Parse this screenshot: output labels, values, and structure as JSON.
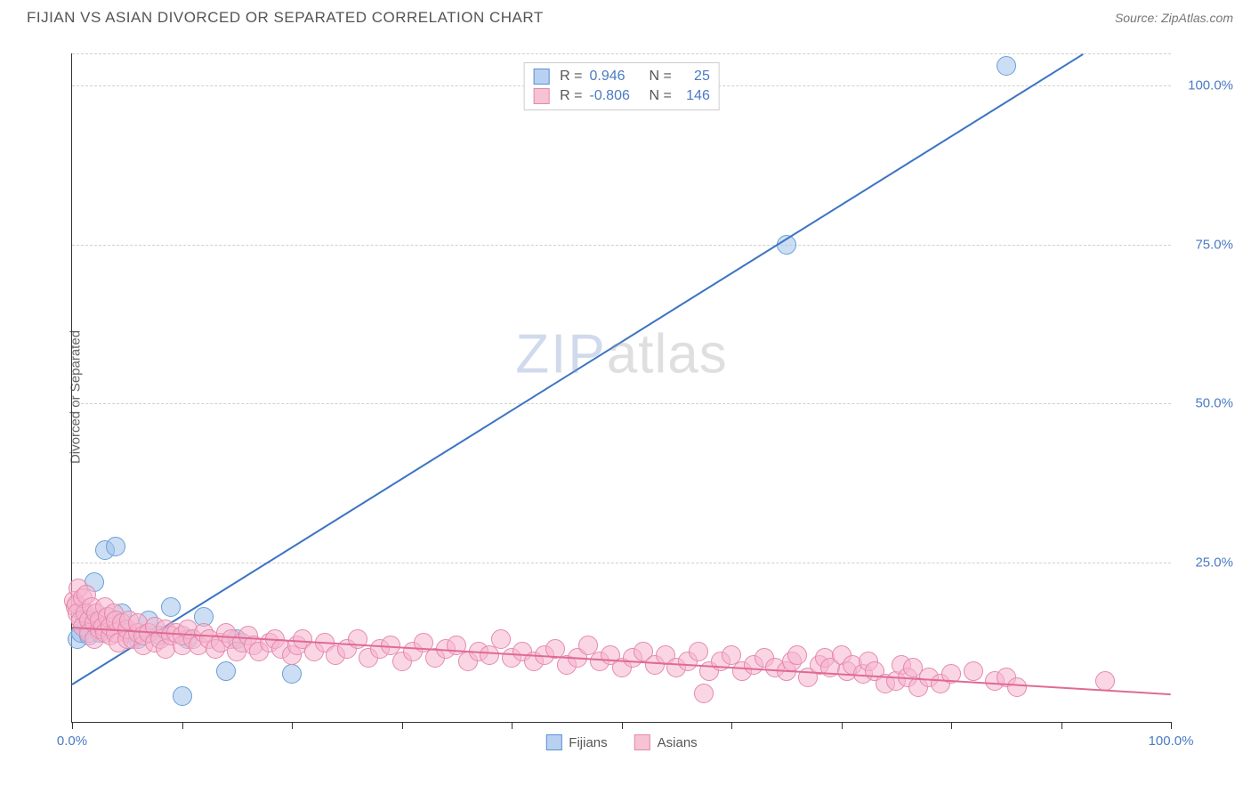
{
  "header": {
    "title": "FIJIAN VS ASIAN DIVORCED OR SEPARATED CORRELATION CHART",
    "source_label": "Source:",
    "source_value": "ZipAtlas.com"
  },
  "chart": {
    "type": "scatter",
    "y_label": "Divorced or Separated",
    "background_color": "#ffffff",
    "grid_color": "#d0d0d0",
    "axis_color": "#333333",
    "tick_label_color": "#4a7bc4",
    "xlim": [
      0,
      100
    ],
    "ylim": [
      0,
      105
    ],
    "x_ticks": [
      0,
      10,
      20,
      30,
      40,
      50,
      60,
      70,
      80,
      90,
      100
    ],
    "x_tick_labels": {
      "0": "0.0%",
      "100": "100.0%"
    },
    "y_gridlines": [
      25,
      50,
      75,
      100,
      105
    ],
    "y_tick_labels": {
      "25": "25.0%",
      "50": "50.0%",
      "75": "75.0%",
      "100": "100.0%"
    },
    "watermark": {
      "part1": "ZIP",
      "part2": "atlas"
    },
    "legend_bottom": [
      {
        "label": "Fijians",
        "fill": "#b9d1f0",
        "stroke": "#5a8fd6"
      },
      {
        "label": "Asians",
        "fill": "#f5c3d4",
        "stroke": "#e589ab"
      }
    ],
    "legend_stats": [
      {
        "fill": "#b9d1f0",
        "stroke": "#5a8fd6",
        "r_label": "R =",
        "r_value": "0.946",
        "n_label": "N =",
        "n_value": "25"
      },
      {
        "fill": "#f5c3d4",
        "stroke": "#e589ab",
        "r_label": "R =",
        "r_value": "-0.806",
        "n_label": "N =",
        "n_value": "146"
      }
    ],
    "series": [
      {
        "name": "Fijians",
        "marker_fill": "rgba(160,195,235,0.55)",
        "marker_stroke": "#6a9fd8",
        "marker_radius": 11,
        "line_color": "#3a74c4",
        "line_width": 2,
        "trend": {
          "x1": 0,
          "y1": 6,
          "x2": 92,
          "y2": 105
        },
        "points": [
          [
            0.5,
            13
          ],
          [
            0.8,
            14
          ],
          [
            1,
            15
          ],
          [
            1,
            17
          ],
          [
            1.5,
            16
          ],
          [
            1.5,
            13.5
          ],
          [
            2,
            15.5
          ],
          [
            2,
            22
          ],
          [
            2.5,
            14
          ],
          [
            3,
            27
          ],
          [
            4,
            27.5
          ],
          [
            4.5,
            17
          ],
          [
            5,
            14
          ],
          [
            6,
            13
          ],
          [
            7,
            16
          ],
          [
            8,
            13.5
          ],
          [
            9,
            18
          ],
          [
            10,
            4
          ],
          [
            10.5,
            13
          ],
          [
            12,
            16.5
          ],
          [
            14,
            8
          ],
          [
            15,
            13
          ],
          [
            20,
            7.5
          ],
          [
            65,
            75
          ],
          [
            85,
            103
          ]
        ]
      },
      {
        "name": "Asians",
        "marker_fill": "rgba(245,180,205,0.55)",
        "marker_stroke": "#e589ab",
        "marker_radius": 11,
        "line_color": "#e06a94",
        "line_width": 2,
        "trend": {
          "x1": 0,
          "y1": 15,
          "x2": 100,
          "y2": 4.5
        },
        "points": [
          [
            0.2,
            19
          ],
          [
            0.3,
            18
          ],
          [
            0.4,
            18.5
          ],
          [
            0.5,
            17
          ],
          [
            0.6,
            21
          ],
          [
            0.8,
            16
          ],
          [
            1,
            19.5
          ],
          [
            1,
            15
          ],
          [
            1.2,
            17
          ],
          [
            1.3,
            20
          ],
          [
            1.5,
            16
          ],
          [
            1.5,
            14
          ],
          [
            1.8,
            18
          ],
          [
            2,
            15.5
          ],
          [
            2,
            13
          ],
          [
            2.2,
            17
          ],
          [
            2.5,
            14.5
          ],
          [
            2.5,
            16
          ],
          [
            2.8,
            15
          ],
          [
            3,
            18
          ],
          [
            3,
            14
          ],
          [
            3.2,
            16.5
          ],
          [
            3.5,
            13.5
          ],
          [
            3.5,
            15
          ],
          [
            3.8,
            17
          ],
          [
            4,
            14
          ],
          [
            4,
            16
          ],
          [
            4.2,
            12.5
          ],
          [
            4.5,
            15.5
          ],
          [
            5,
            13
          ],
          [
            5,
            14.5
          ],
          [
            5.2,
            16
          ],
          [
            5.5,
            13
          ],
          [
            6,
            14
          ],
          [
            6,
            15.5
          ],
          [
            6.5,
            12
          ],
          [
            6.5,
            13.5
          ],
          [
            7,
            14
          ],
          [
            7.5,
            15
          ],
          [
            7.5,
            12.5
          ],
          [
            8,
            13
          ],
          [
            8.5,
            14.5
          ],
          [
            8.5,
            11.5
          ],
          [
            9,
            13.5
          ],
          [
            9.5,
            14
          ],
          [
            10,
            12
          ],
          [
            10,
            13.5
          ],
          [
            10.5,
            14.5
          ],
          [
            11,
            13
          ],
          [
            11.5,
            12
          ],
          [
            12,
            14
          ],
          [
            12.5,
            13
          ],
          [
            13,
            11.5
          ],
          [
            13.5,
            12.5
          ],
          [
            14,
            14
          ],
          [
            14.5,
            13
          ],
          [
            15,
            11
          ],
          [
            15.5,
            12.5
          ],
          [
            16,
            13.5
          ],
          [
            16.5,
            12
          ],
          [
            17,
            11
          ],
          [
            18,
            12.5
          ],
          [
            18.5,
            13
          ],
          [
            19,
            11.5
          ],
          [
            20,
            10.5
          ],
          [
            20.5,
            12
          ],
          [
            21,
            13
          ],
          [
            22,
            11
          ],
          [
            23,
            12.5
          ],
          [
            24,
            10.5
          ],
          [
            25,
            11.5
          ],
          [
            26,
            13
          ],
          [
            27,
            10
          ],
          [
            28,
            11.5
          ],
          [
            29,
            12
          ],
          [
            30,
            9.5
          ],
          [
            31,
            11
          ],
          [
            32,
            12.5
          ],
          [
            33,
            10
          ],
          [
            34,
            11.5
          ],
          [
            35,
            12
          ],
          [
            36,
            9.5
          ],
          [
            37,
            11
          ],
          [
            38,
            10.5
          ],
          [
            39,
            13
          ],
          [
            40,
            10
          ],
          [
            41,
            11
          ],
          [
            42,
            9.5
          ],
          [
            43,
            10.5
          ],
          [
            44,
            11.5
          ],
          [
            45,
            9
          ],
          [
            46,
            10
          ],
          [
            47,
            12
          ],
          [
            48,
            9.5
          ],
          [
            49,
            10.5
          ],
          [
            50,
            8.5
          ],
          [
            51,
            10
          ],
          [
            52,
            11
          ],
          [
            53,
            9
          ],
          [
            54,
            10.5
          ],
          [
            55,
            8.5
          ],
          [
            56,
            9.5
          ],
          [
            57,
            11
          ],
          [
            57.5,
            4.5
          ],
          [
            58,
            8
          ],
          [
            59,
            9.5
          ],
          [
            60,
            10.5
          ],
          [
            61,
            8
          ],
          [
            62,
            9
          ],
          [
            63,
            10
          ],
          [
            64,
            8.5
          ],
          [
            65,
            8
          ],
          [
            65.5,
            9.5
          ],
          [
            66,
            10.5
          ],
          [
            67,
            7
          ],
          [
            68,
            9
          ],
          [
            68.5,
            10
          ],
          [
            69,
            8.5
          ],
          [
            70,
            10.5
          ],
          [
            70.5,
            8
          ],
          [
            71,
            9
          ],
          [
            72,
            7.5
          ],
          [
            72.5,
            9.5
          ],
          [
            73,
            8
          ],
          [
            74,
            6
          ],
          [
            75,
            6.5
          ],
          [
            75.5,
            9
          ],
          [
            76,
            7
          ],
          [
            76.5,
            8.5
          ],
          [
            77,
            5.5
          ],
          [
            78,
            7
          ],
          [
            79,
            6
          ],
          [
            80,
            7.5
          ],
          [
            82,
            8
          ],
          [
            84,
            6.5
          ],
          [
            85,
            7
          ],
          [
            86,
            5.5
          ],
          [
            94,
            6.5
          ]
        ]
      }
    ]
  }
}
